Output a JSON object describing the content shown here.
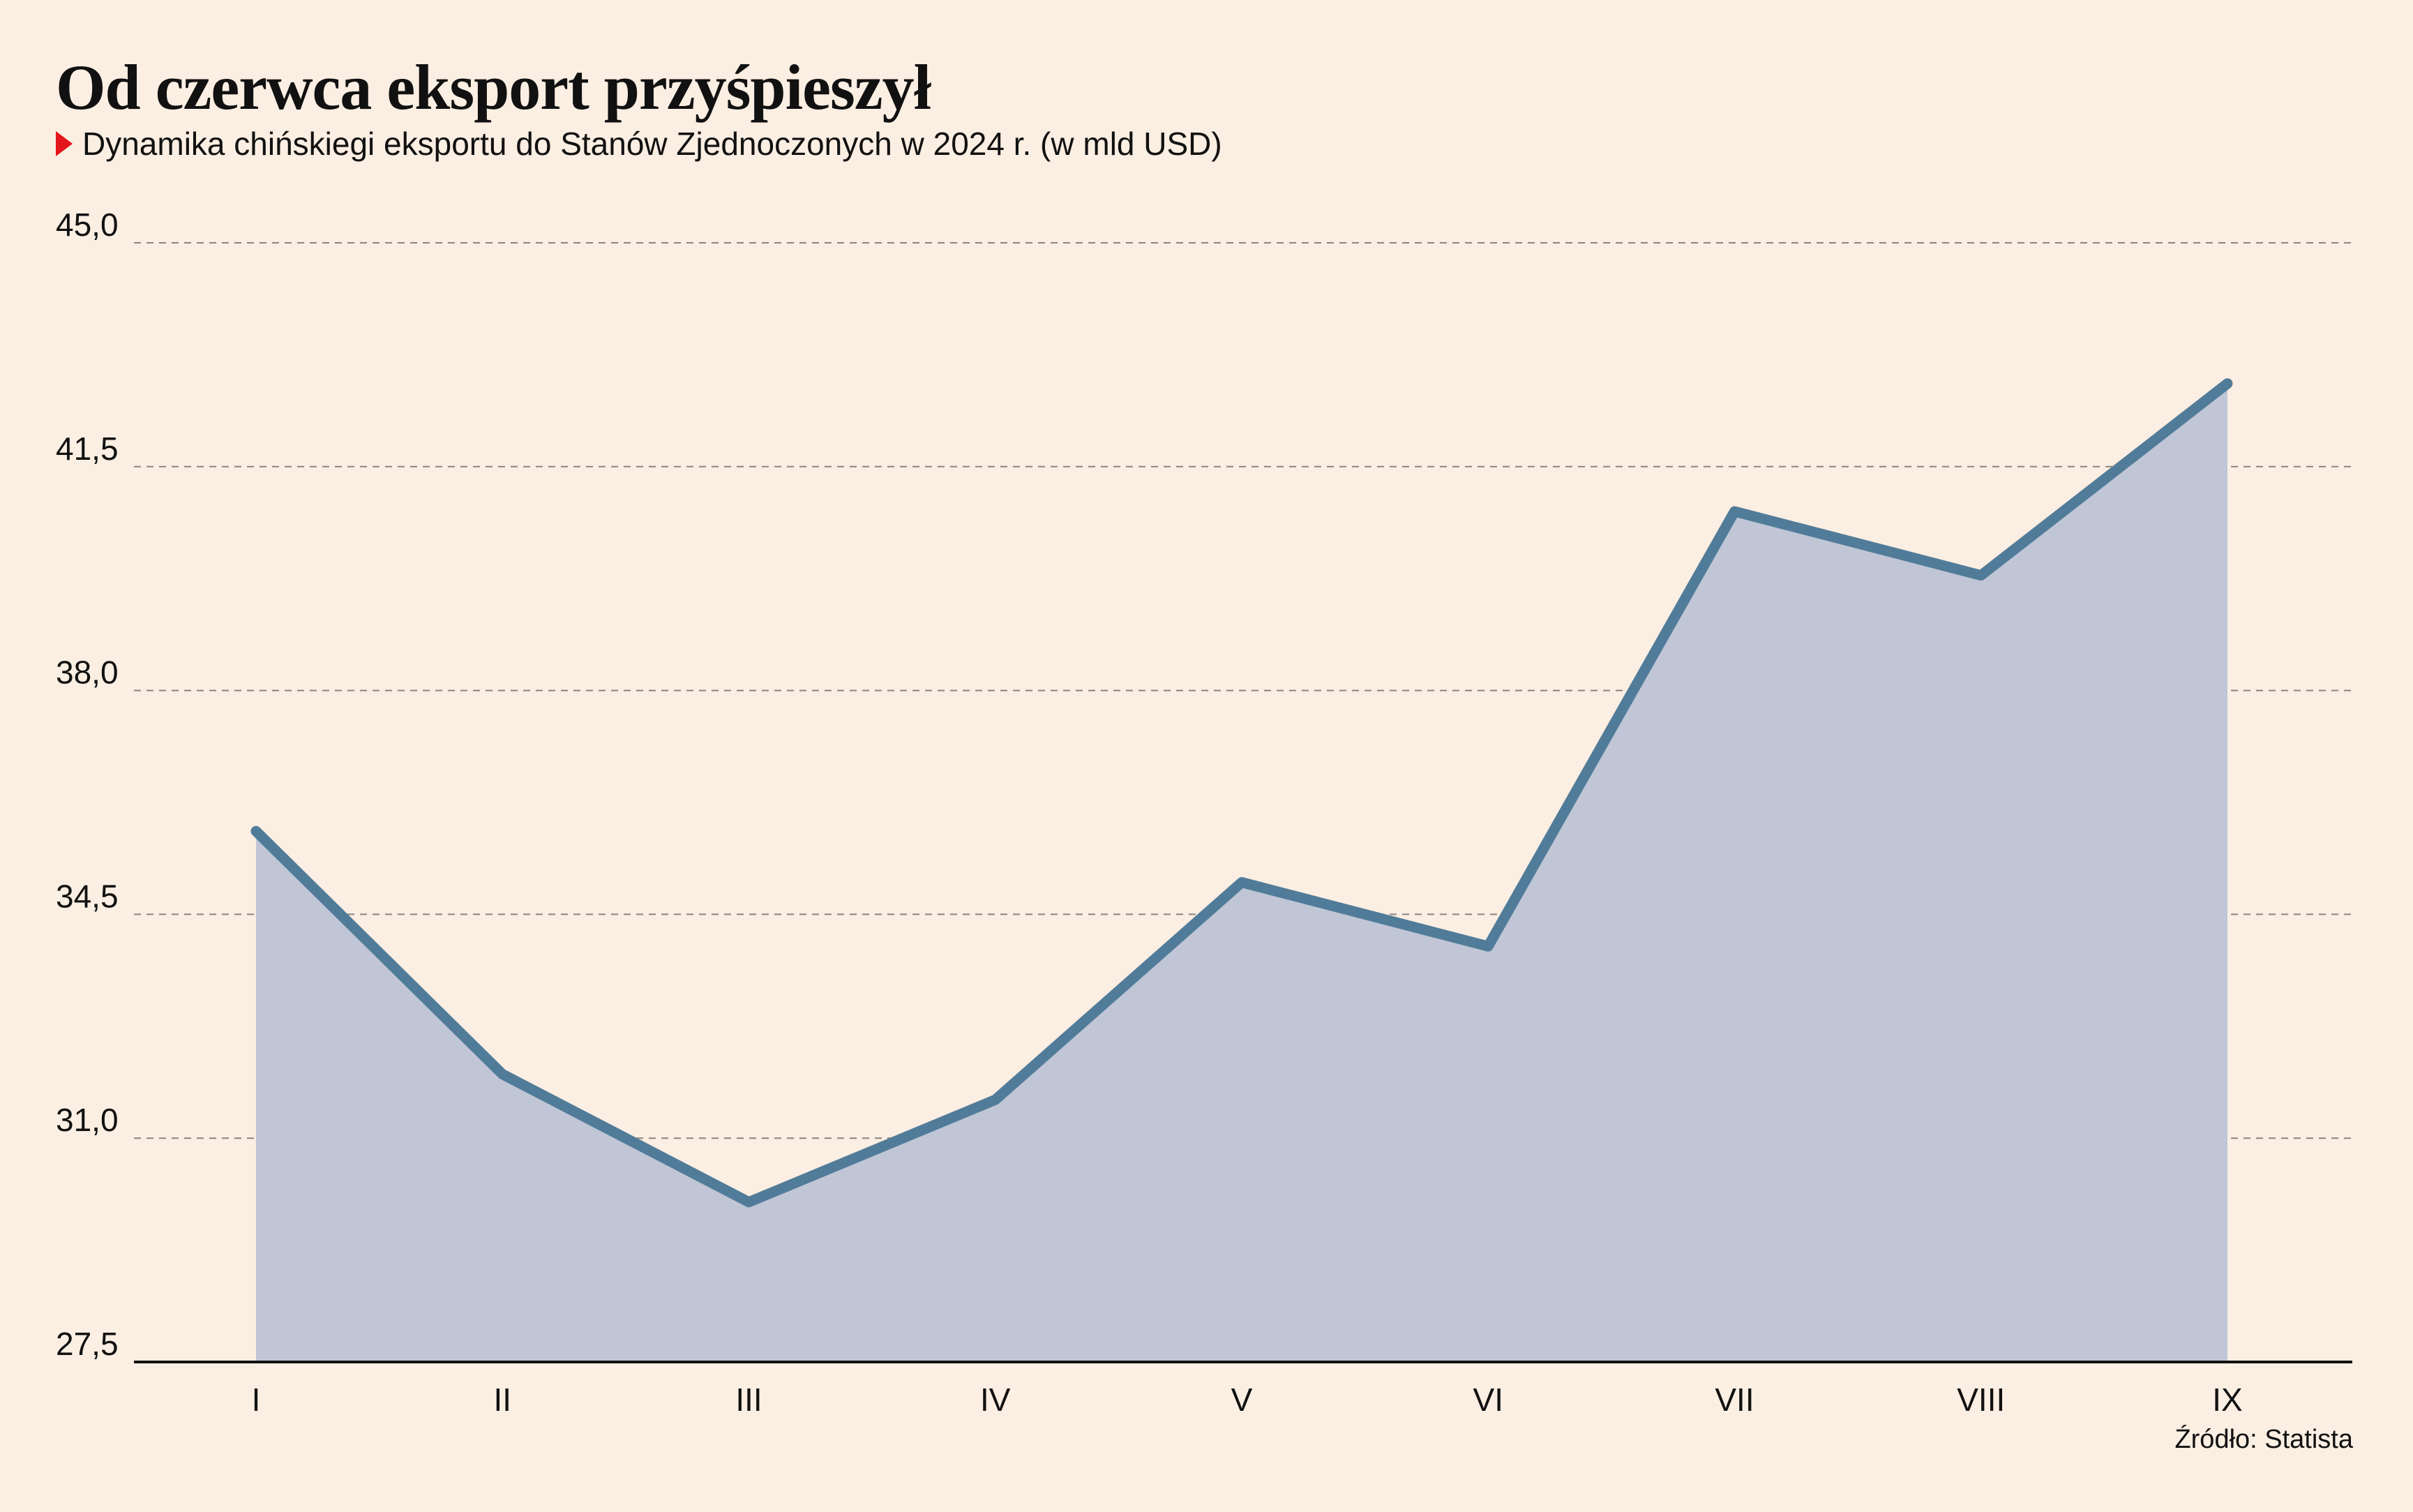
{
  "title": "Od czerwca eksport przyśpieszył",
  "subtitle": "Dynamika chińskiegi eksportu do Stanów Zjednoczonych w 2024 r. (w mld USD)",
  "source": "Źródło: Statista",
  "colors": {
    "background": "#fbeee2",
    "line": "#517c99",
    "area": "#c0c6d6",
    "marker": "#e3161b"
  },
  "chart_data": {
    "type": "area",
    "categories": [
      "I",
      "II",
      "III",
      "IV",
      "V",
      "VI",
      "VII",
      "VIII",
      "IX"
    ],
    "series": [
      {
        "values": [
          35.8,
          32.0,
          30.0,
          31.6,
          35.0,
          34.0,
          40.8,
          39.8,
          42.8
        ]
      }
    ],
    "ylim": [
      27.5,
      45.0
    ],
    "yticks": [
      "45,0",
      "41,5",
      "38,0",
      "34,5",
      "31,0",
      "27,5"
    ],
    "ytick_values": [
      45.0,
      41.5,
      38.0,
      34.5,
      31.0,
      27.5
    ],
    "grid": "horizontal dashed",
    "legend": "none"
  }
}
